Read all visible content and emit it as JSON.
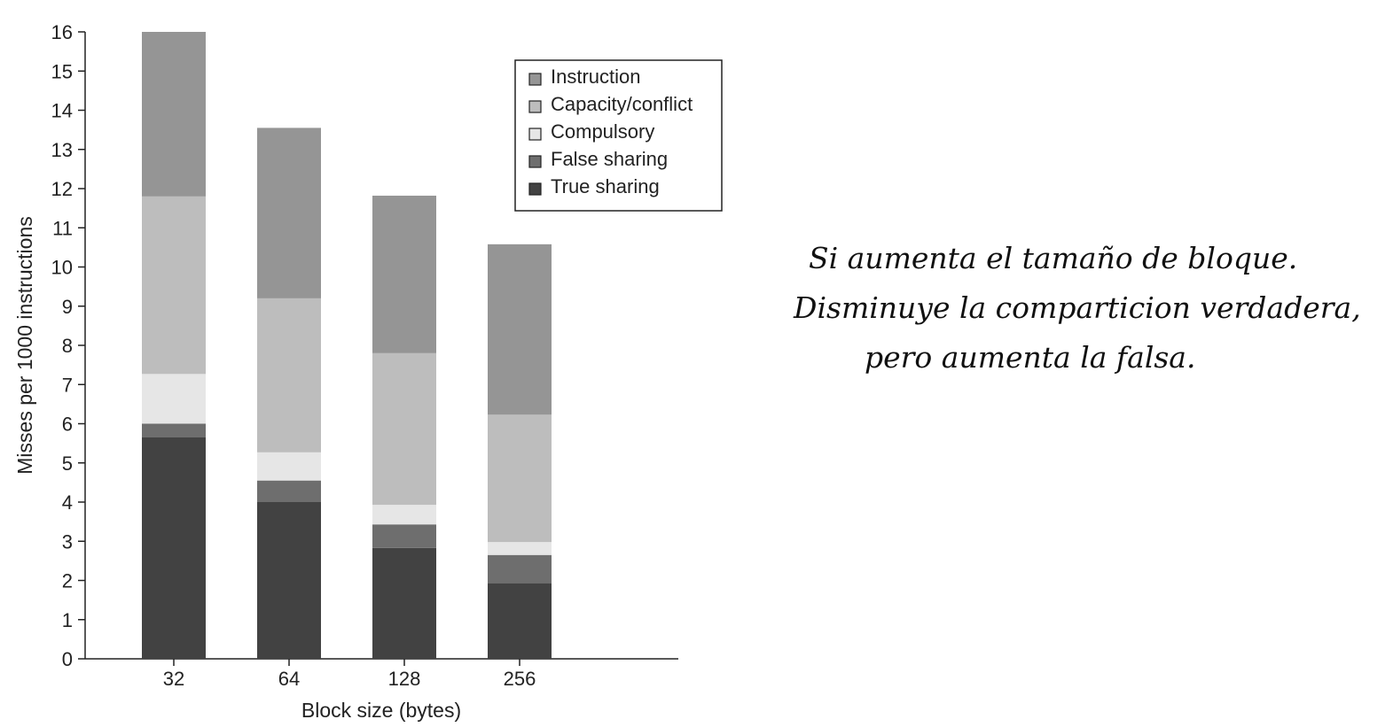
{
  "chart_data": {
    "type": "bar",
    "stacked": true,
    "categories": [
      "32",
      "64",
      "128",
      "256"
    ],
    "series": [
      {
        "name": "True sharing",
        "values": [
          5.65,
          4.0,
          2.83,
          1.93
        ],
        "color": "#424242"
      },
      {
        "name": "False sharing",
        "values": [
          0.35,
          0.55,
          0.6,
          0.72
        ],
        "color": "#6e6e6e"
      },
      {
        "name": "Compulsory",
        "values": [
          1.27,
          0.72,
          0.5,
          0.33
        ],
        "color": "#e6e6e6"
      },
      {
        "name": "Capacity/conflict",
        "values": [
          4.53,
          3.93,
          3.87,
          3.25
        ],
        "color": "#bdbdbd"
      },
      {
        "name": "Instruction",
        "values": [
          4.2,
          4.35,
          4.02,
          4.35
        ],
        "color": "#959595"
      }
    ],
    "legend_order": [
      "Instruction",
      "Capacity/conflict",
      "Compulsory",
      "False sharing",
      "True sharing"
    ],
    "legend_position": "top-right",
    "xlabel": "Block size (bytes)",
    "ylabel": "Misses per 1000 instructions",
    "ylim": [
      0,
      16
    ],
    "yticks": [
      0,
      1,
      2,
      3,
      4,
      5,
      6,
      7,
      8,
      9,
      10,
      11,
      12,
      13,
      14,
      15,
      16
    ],
    "grid": false
  },
  "annotation": {
    "lines": [
      "Si aumenta el tamaño de bloque.",
      "Disminuye la comparticion verdadera,",
      "pero aumenta la falsa."
    ]
  }
}
